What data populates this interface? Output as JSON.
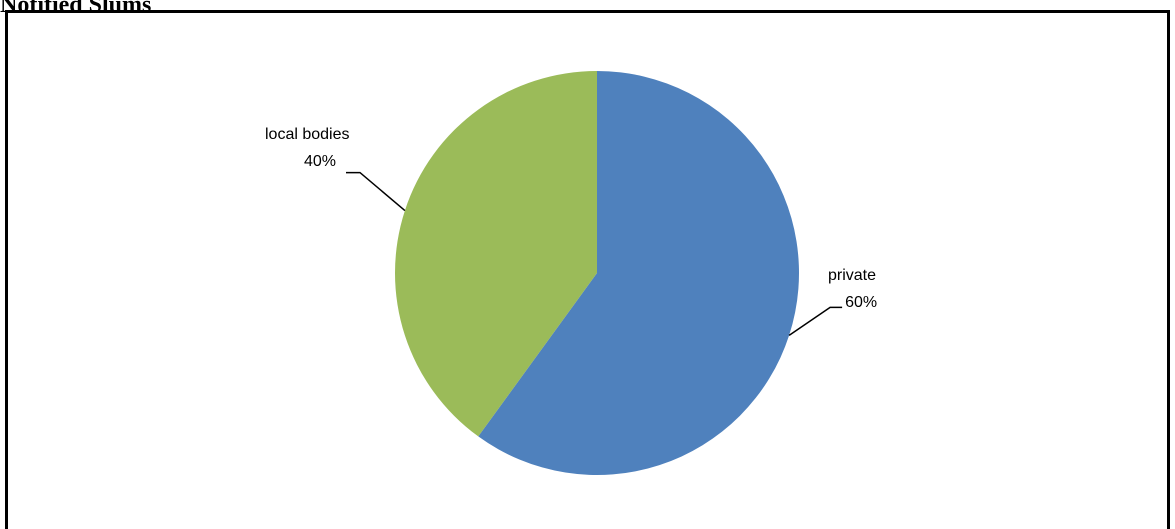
{
  "heading": "Notified Slums",
  "chart_data": {
    "type": "pie",
    "start_angle_deg": 0,
    "direction": "clockwise",
    "slices": [
      {
        "name": "private",
        "value": 60,
        "display": "60%",
        "color": "#4f81bd",
        "label_side": "right"
      },
      {
        "name": "local bodies",
        "value": 40,
        "display": "40%",
        "color": "#9bbb59",
        "label_side": "left"
      }
    ],
    "legend": "none",
    "data_labels": "outside-with-leader-lines"
  }
}
